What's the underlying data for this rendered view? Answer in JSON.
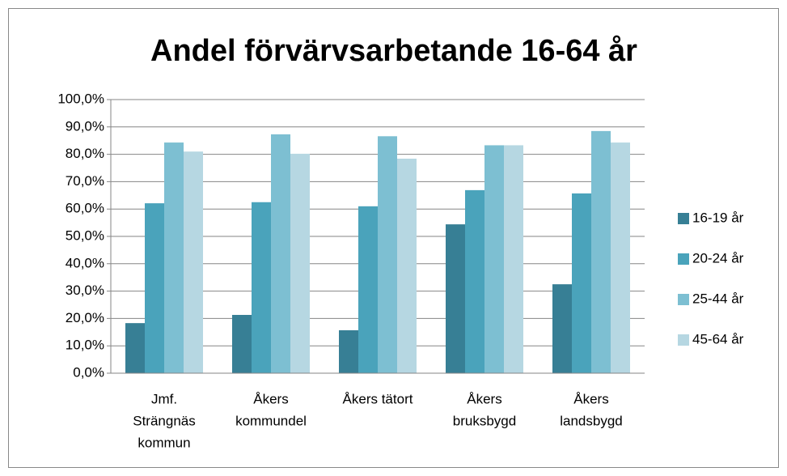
{
  "chart_data": {
    "type": "bar",
    "title": "Andel förvärvsarbetande 16-64 år",
    "categories": [
      [
        "Jmf.",
        "Strängnäs",
        "kommun"
      ],
      [
        "Åkers",
        "kommundel"
      ],
      [
        "Åkers tätort"
      ],
      [
        "Åkers",
        "bruksbygd"
      ],
      [
        "Åkers",
        "landsbygd"
      ]
    ],
    "series": [
      {
        "name": "16-19 år",
        "color": "#377f95",
        "values": [
          18.3,
          21.3,
          15.7,
          54.4,
          32.5
        ]
      },
      {
        "name": "20-24 år",
        "color": "#4aa3bb",
        "values": [
          62.1,
          62.5,
          61,
          66.9,
          65.7
        ]
      },
      {
        "name": "25-44 år",
        "color": "#7dbfd2",
        "values": [
          84.3,
          87.3,
          86.6,
          83.3,
          88.5
        ]
      },
      {
        "name": "45-64 år",
        "color": "#b6d7e2",
        "values": [
          81,
          80.2,
          78.4,
          83.3,
          84.3
        ]
      }
    ],
    "ylim": [
      0,
      100
    ],
    "yticks": [
      {
        "value": 0,
        "label": "0,0%"
      },
      {
        "value": 10,
        "label": "10,0%"
      },
      {
        "value": 20,
        "label": "20,0%"
      },
      {
        "value": 30,
        "label": "30,0%"
      },
      {
        "value": 40,
        "label": "40,0%"
      },
      {
        "value": 50,
        "label": "50,0%"
      },
      {
        "value": 60,
        "label": "60,0%"
      },
      {
        "value": 70,
        "label": "70,0%"
      },
      {
        "value": 80,
        "label": "80,0%"
      },
      {
        "value": 90,
        "label": "90,0%"
      },
      {
        "value": 100,
        "label": "100,0%"
      }
    ],
    "grid": true,
    "legend": "right"
  }
}
